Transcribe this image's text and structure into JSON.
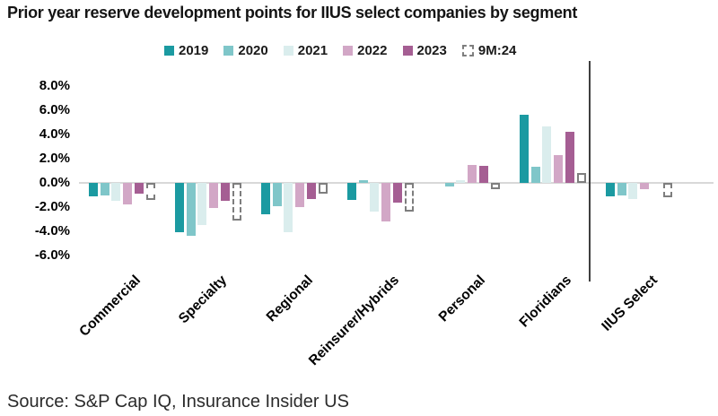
{
  "title": "Prior year reserve development points for IIUS select companies by segment",
  "source_note": "Source: S&P Cap IQ, Insurance Insider US",
  "chart_data": {
    "type": "bar",
    "title": "Prior year reserve development points for IIUS select companies by segment",
    "categories": [
      "Commercial",
      "Specialty",
      "Regional",
      "Reinsurer/Hybrids",
      "Personal",
      "Floridians",
      "IIUS Select"
    ],
    "series": [
      {
        "name": "2019",
        "color": "#1B9AA1",
        "fill": "solid",
        "values": [
          -1.1,
          -4.1,
          -2.6,
          -1.4,
          0.0,
          5.6,
          -1.1
        ]
      },
      {
        "name": "2020",
        "color": "#7FC6C9",
        "fill": "solid",
        "values": [
          -1.0,
          -4.4,
          -1.9,
          0.2,
          -0.3,
          1.3,
          -1.0
        ]
      },
      {
        "name": "2021",
        "color": "#DAEDED",
        "fill": "solid",
        "values": [
          -1.5,
          -3.5,
          -4.1,
          -2.4,
          0.2,
          4.7,
          -1.3
        ]
      },
      {
        "name": "2022",
        "color": "#D2A7C6",
        "fill": "solid",
        "values": [
          -1.8,
          -2.1,
          -2.0,
          -3.2,
          1.5,
          2.3,
          -0.5
        ]
      },
      {
        "name": "2023",
        "color": "#A55E93",
        "fill": "solid",
        "values": [
          -0.9,
          -1.5,
          -1.3,
          -1.6,
          1.4,
          4.2,
          0.0
        ]
      },
      {
        "name": "9M:24",
        "color": "#7E7E7E",
        "fill": "dashed",
        "values": [
          -1.4,
          -3.1,
          -0.9,
          -2.4,
          -0.5,
          0.8,
          -1.2
        ]
      }
    ],
    "y_tick_labels": [
      "8.0%",
      "6.0%",
      "4.0%",
      "2.0%",
      "0.0%",
      "-2.0%",
      "-4.0%",
      "-6.0%"
    ],
    "y_tick_values": [
      8,
      6,
      4,
      2,
      0,
      -2,
      -4,
      -6
    ],
    "ylim": [
      -6.0,
      8.0
    ],
    "unit": "%",
    "grid": "zero-line-only",
    "legend_position": "top",
    "separator_between": [
      "Floridians",
      "IIUS Select"
    ]
  },
  "colors": {
    "zero_line": "#D8D8D8",
    "separator": "#3F3F3F",
    "dashed_outline": "#7E7E7E"
  }
}
